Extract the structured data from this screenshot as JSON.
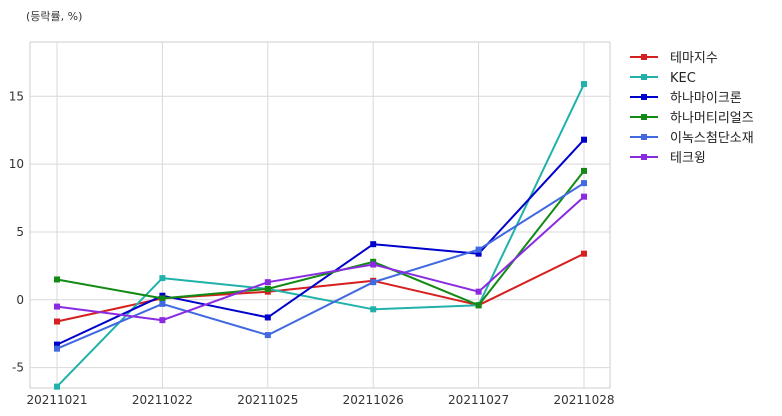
{
  "chart_data": {
    "type": "line",
    "unit_label": "(등락률, %)",
    "x": [
      "20211021",
      "20211022",
      "20211025",
      "20211026",
      "20211027",
      "20211028"
    ],
    "ylim": [
      -6.5,
      19
    ],
    "yticks": [
      -5,
      0,
      5,
      10,
      15
    ],
    "grid": true,
    "legend_position": "top-right outside",
    "series": [
      {
        "name": "테마지수",
        "color": "#d62020",
        "values": [
          -1.6,
          0.1,
          0.6,
          1.4,
          -0.4,
          3.4
        ]
      },
      {
        "name": "KEC",
        "color": "#20b2aa",
        "values": [
          -6.4,
          1.6,
          0.8,
          -0.7,
          -0.4,
          15.9
        ]
      },
      {
        "name": "하나마이크론",
        "color": "#0000cc",
        "values": [
          -3.3,
          0.3,
          -1.3,
          4.1,
          3.4,
          11.8
        ]
      },
      {
        "name": "하나머티리얼즈",
        "color": "#138a13",
        "values": [
          1.5,
          0.1,
          0.8,
          2.8,
          -0.4,
          9.5
        ]
      },
      {
        "name": "이녹스첨단소재",
        "color": "#4169e1",
        "values": [
          -3.6,
          -0.3,
          -2.6,
          1.3,
          3.7,
          8.6
        ]
      },
      {
        "name": "테크윙",
        "color": "#8a2be2",
        "values": [
          -0.5,
          -1.5,
          1.3,
          2.6,
          0.6,
          7.6
        ]
      }
    ]
  }
}
